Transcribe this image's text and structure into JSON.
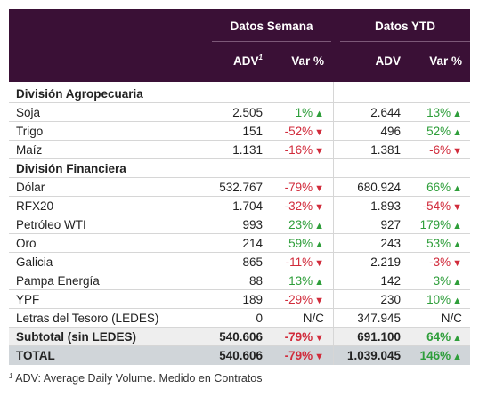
{
  "header": {
    "group_semana": "Datos Semana",
    "group_ytd": "Datos YTD",
    "col_adv": "ADV",
    "col_adv_footnote_mark": "1",
    "col_var": "Var %",
    "col_adv_ytd": "ADV",
    "col_var_ytd": "Var %"
  },
  "sections": [
    {
      "title": "División Agropecuaria",
      "rows": [
        {
          "name": "Soja",
          "adv": "2.505",
          "var": "1%",
          "var_dir": "up",
          "adv_ytd": "2.644",
          "var_ytd": "13%",
          "var_ytd_dir": "up"
        },
        {
          "name": "Trigo",
          "adv": "151",
          "var": "-52%",
          "var_dir": "down",
          "adv_ytd": "496",
          "var_ytd": "52%",
          "var_ytd_dir": "up"
        },
        {
          "name": "Maíz",
          "adv": "1.131",
          "var": "-16%",
          "var_dir": "down",
          "adv_ytd": "1.381",
          "var_ytd": "-6%",
          "var_ytd_dir": "down"
        }
      ]
    },
    {
      "title": "División Financiera",
      "rows": [
        {
          "name": "Dólar",
          "adv": "532.767",
          "var": "-79%",
          "var_dir": "down",
          "adv_ytd": "680.924",
          "var_ytd": "66%",
          "var_ytd_dir": "up"
        },
        {
          "name": "RFX20",
          "adv": "1.704",
          "var": "-32%",
          "var_dir": "down",
          "adv_ytd": "1.893",
          "var_ytd": "-54%",
          "var_ytd_dir": "down"
        },
        {
          "name": "Petróleo WTI",
          "adv": "993",
          "var": "23%",
          "var_dir": "up",
          "adv_ytd": "927",
          "var_ytd": "179%",
          "var_ytd_dir": "up"
        },
        {
          "name": "Oro",
          "adv": "214",
          "var": "59%",
          "var_dir": "up",
          "adv_ytd": "243",
          "var_ytd": "53%",
          "var_ytd_dir": "up"
        },
        {
          "name": "Galicia",
          "adv": "865",
          "var": "-11%",
          "var_dir": "down",
          "adv_ytd": "2.219",
          "var_ytd": "-3%",
          "var_ytd_dir": "down"
        },
        {
          "name": "Pampa Energía",
          "adv": "88",
          "var": "13%",
          "var_dir": "up",
          "adv_ytd": "142",
          "var_ytd": "3%",
          "var_ytd_dir": "up"
        },
        {
          "name": "YPF",
          "adv": "189",
          "var": "-29%",
          "var_dir": "down",
          "adv_ytd": "230",
          "var_ytd": "10%",
          "var_ytd_dir": "up"
        },
        {
          "name": "Letras del Tesoro (LEDES)",
          "adv": "0",
          "var": "N/C",
          "var_dir": "none",
          "adv_ytd": "347.945",
          "var_ytd": "N/C",
          "var_ytd_dir": "none"
        }
      ]
    }
  ],
  "subtotal": {
    "name": "Subtotal (sin LEDES)",
    "adv": "540.606",
    "var": "-79%",
    "var_dir": "down",
    "adv_ytd": "691.100",
    "var_ytd": "64%",
    "var_ytd_dir": "up"
  },
  "total": {
    "name": "TOTAL",
    "adv": "540.606",
    "var": "-79%",
    "var_dir": "down",
    "adv_ytd": "1.039.045",
    "var_ytd": "146%",
    "var_ytd_dir": "up"
  },
  "footnote": {
    "mark": "1",
    "text": "ADV: Average Daily Volume. Medido en Contratos"
  },
  "colors": {
    "header_bg": "#3a1036",
    "positive": "#2e9e3a",
    "negative": "#d12b3b",
    "subtotal_bg": "#eeeeee",
    "total_bg": "#d0d5d9"
  },
  "icons": {
    "up": "triangle-up-icon",
    "down": "triangle-down-icon"
  }
}
